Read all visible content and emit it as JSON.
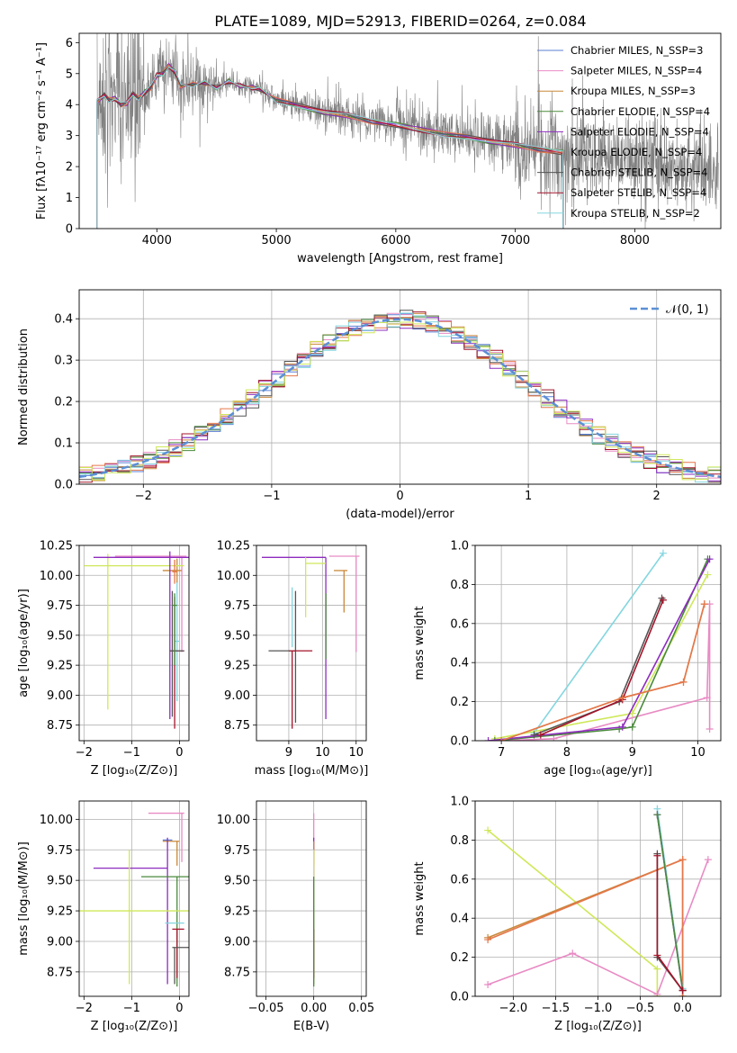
{
  "figure_title": "PLATE=1089, MJD=52913, FIBERID=0264, z=0.084",
  "colors": {
    "Chabrier MILES": "#5b7fd6",
    "Salpeter MILES": "#e88bc4",
    "Kroupa MILES": "#c9883a",
    "Chabrier ELODIE": "#4a8a3c",
    "Salpeter ELODIE": "#8e2cbf",
    "Kroupa ELODIE": "#e5774b",
    "Chabrier STELIB": "#555555",
    "Salpeter STELIB": "#a3142a",
    "Kroupa STELIB": "#83d6df",
    "extra": "#cfe85a",
    "data": "#808080",
    "gauss": "#5b8fd6"
  },
  "chart_data": [
    {
      "id": "spectrum",
      "type": "line",
      "title": "PLATE=1089, MJD=52913, FIBERID=0264, z=0.084",
      "xlabel": "wavelength [Angstrom, rest frame]",
      "ylabel": "Flux [fλ10⁻¹⁷ erg cm⁻² s⁻¹ A⁻¹]",
      "xlim": [
        3350,
        8720
      ],
      "ylim": [
        0,
        6.3
      ],
      "xticks": [
        4000,
        5000,
        6000,
        7000,
        8000
      ],
      "yticks": [
        0,
        1,
        2,
        3,
        4,
        5,
        6
      ],
      "legend_position": "top-right",
      "legend": [
        "Chabrier MILES, N_SSP=3",
        "Salpeter MILES, N_SSP=4",
        "Kroupa MILES, N_SSP=3",
        "Chabrier ELODIE, N_SSP=4",
        "Salpeter ELODIE, N_SSP=4",
        "Kroupa ELODIE, N_SSP=4",
        "Chabrier STELIB, N_SSP=4",
        "Salpeter STELIB, N_SSP=4",
        "Kroupa STELIB, N_SSP=2"
      ],
      "legend_keys": [
        "Chabrier MILES",
        "Salpeter MILES",
        "Kroupa MILES",
        "Chabrier ELODIE",
        "Salpeter ELODIE",
        "Kroupa ELODIE",
        "Chabrier STELIB",
        "Salpeter STELIB",
        "Kroupa STELIB"
      ],
      "model_continuum": {
        "x": [
          3500,
          3560,
          3600,
          3650,
          3700,
          3750,
          3800,
          3850,
          3900,
          3950,
          4000,
          4050,
          4100,
          4150,
          4200,
          4300,
          4400,
          4500,
          4600,
          4700,
          4800,
          4860,
          5000,
          5200,
          5400,
          5600,
          5800,
          6000,
          6200,
          6400,
          6600,
          6800,
          7000,
          7200,
          7400
        ],
        "y": [
          4.1,
          4.3,
          4.15,
          4.2,
          4.0,
          4.05,
          4.35,
          4.2,
          4.4,
          4.55,
          4.95,
          5.0,
          5.25,
          5.05,
          4.6,
          4.65,
          4.7,
          4.55,
          4.75,
          4.6,
          4.55,
          4.5,
          4.15,
          3.95,
          3.75,
          3.65,
          3.45,
          3.35,
          3.2,
          3.05,
          2.95,
          2.8,
          2.7,
          2.55,
          2.45
        ]
      }
    },
    {
      "id": "residuals",
      "type": "line",
      "xlabel": "(data-model)/error",
      "ylabel": "Normed distribution",
      "xlim": [
        -2.5,
        2.5
      ],
      "ylim": [
        0,
        0.47
      ],
      "xticks": [
        -2,
        -1,
        0,
        1,
        2
      ],
      "yticks": [
        0.0,
        0.1,
        0.2,
        0.3,
        0.4
      ],
      "legend": [
        "𝒩(0, 1)"
      ],
      "legend_position": "top-right",
      "gaussian": {
        "mu": 0,
        "sigma": 1
      },
      "hist_bins": {
        "start": -2.5,
        "width": 0.1,
        "count": 50
      }
    },
    {
      "id": "age_vs_Z",
      "type": "scatter",
      "xlabel": "Z [log₁₀(Z/Z⊙)]",
      "ylabel": "age  [log₁₀(age/yr)]",
      "xlim": [
        -2.1,
        0.2
      ],
      "ylim": [
        8.62,
        10.25
      ],
      "xticks": [
        -2,
        -1,
        0
      ],
      "yticks": [
        8.75,
        9.0,
        9.25,
        9.5,
        9.75,
        10.0,
        10.25
      ],
      "points": [
        {
          "model": "Kroupa STELIB",
          "x": -0.05,
          "y": 9.45,
          "xerr": [
            0.05,
            0.05
          ],
          "yerr": [
            0.5,
            0.5
          ]
        },
        {
          "model": "Salpeter MILES",
          "x": 0.05,
          "y": 10.16,
          "xerr": [
            1.4,
            0.1
          ],
          "yerr": [
            0.8,
            0.0
          ]
        },
        {
          "model": "Kroupa MILES",
          "x": -0.05,
          "y": 10.04,
          "xerr": [
            0.3,
            0.1
          ],
          "yerr": [
            0.1,
            0.1
          ]
        },
        {
          "model": "extra",
          "x": -1.5,
          "y": 10.08,
          "xerr": [
            0.5,
            1.6
          ],
          "yerr": [
            1.2,
            0.1
          ]
        },
        {
          "model": "Salpeter ELODIE",
          "x": -0.2,
          "y": 10.15,
          "xerr": [
            1.6,
            0.4
          ],
          "yerr": [
            1.35,
            0.05
          ]
        },
        {
          "model": "Salpeter STELIB",
          "x": -0.1,
          "y": 9.37,
          "xerr": [
            0.1,
            0.2
          ],
          "yerr": [
            0.65,
            0.45
          ]
        },
        {
          "model": "Chabrier STELIB",
          "x": -0.15,
          "y": 9.37,
          "xerr": [
            0.05,
            0.25
          ],
          "yerr": [
            0.55,
            0.5
          ]
        },
        {
          "model": "Chabrier ELODIE",
          "x": -0.1,
          "y": 9.75,
          "xerr": [
            0.05,
            0.05
          ],
          "yerr": [
            0.5,
            0.1
          ]
        },
        {
          "model": "Kroupa ELODIE",
          "x": -0.1,
          "y": 10.03,
          "xerr": [
            0.05,
            0.05
          ],
          "yerr": [
            0.1,
            0.1
          ]
        }
      ]
    },
    {
      "id": "age_vs_mass",
      "type": "scatter",
      "xlabel": "mass [log₁₀(M/M⊙)]",
      "ylabel": "",
      "xlim": [
        8.52,
        10.15
      ],
      "ylim": [
        8.62,
        10.25
      ],
      "xticks": [
        9,
        9.5,
        10
      ],
      "yticks": [
        8.75,
        9.0,
        9.25,
        9.5,
        9.75,
        10.0,
        10.25
      ],
      "points": [
        {
          "model": "Chabrier STELIB",
          "x": 9.1,
          "y": 9.37,
          "xerr": [
            0.4,
            0.0
          ],
          "yerr": [
            0.6,
            0.5
          ]
        },
        {
          "model": "Salpeter STELIB",
          "x": 9.05,
          "y": 9.37,
          "xerr": [
            0.05,
            0.3
          ],
          "yerr": [
            0.65,
            0.0
          ]
        },
        {
          "model": "Salpeter ELODIE",
          "x": 9.55,
          "y": 10.15,
          "xerr": [
            0.95,
            0.0
          ],
          "yerr": [
            1.35,
            0.0
          ]
        },
        {
          "model": "Kroupa STELIB",
          "x": 9.05,
          "y": 9.9,
          "xerr": [
            0.0,
            0.0
          ],
          "yerr": [
            0.5,
            0.0
          ]
        },
        {
          "model": "extra",
          "x": 9.25,
          "y": 10.1,
          "xerr": [
            0.0,
            0.3
          ],
          "yerr": [
            0.45,
            0.05
          ]
        },
        {
          "model": "Salpeter MILES",
          "x": 10.0,
          "y": 10.16,
          "xerr": [
            0.4,
            0.05
          ],
          "yerr": [
            0.8,
            0.0
          ]
        },
        {
          "model": "Kroupa MILES",
          "x": 9.82,
          "y": 10.04,
          "xerr": [
            0.15,
            0.05
          ],
          "yerr": [
            0.35,
            0.0
          ]
        },
        {
          "model": "Chabrier ELODIE",
          "x": 9.55,
          "y": 9.75,
          "xerr": [
            0.0,
            0.0
          ],
          "yerr": [
            0.45,
            0.1
          ]
        }
      ]
    },
    {
      "id": "massweight_vs_age",
      "type": "line",
      "xlabel": "age  [log₁₀(age/yr)]",
      "ylabel": "mass weight",
      "xlim": [
        6.6,
        10.35
      ],
      "ylim": [
        0,
        1.0
      ],
      "xticks": [
        7,
        8,
        9,
        10
      ],
      "yticks": [
        0.0,
        0.2,
        0.4,
        0.6,
        0.8,
        1.0
      ],
      "series": [
        {
          "model": "Kroupa STELIB",
          "x": [
            7.5,
            9.47
          ],
          "y": [
            0.04,
            0.96
          ]
        },
        {
          "model": "Salpeter MILES",
          "x": [
            7.0,
            7.8,
            10.14,
            10.18,
            10.18
          ],
          "y": [
            0.0,
            0.01,
            0.22,
            0.7,
            0.06
          ]
        },
        {
          "model": "Kroupa MILES",
          "x": [
            7.0,
            8.85,
            9.78,
            10.1
          ],
          "y": [
            0.0,
            0.22,
            0.3,
            0.7
          ]
        },
        {
          "model": "extra",
          "x": [
            6.9,
            9.0,
            10.15
          ],
          "y": [
            0.01,
            0.14,
            0.85
          ]
        },
        {
          "model": "Chabrier ELODIE",
          "x": [
            6.9,
            8.8,
            9.0,
            10.15
          ],
          "y": [
            0.0,
            0.06,
            0.07,
            0.93
          ]
        },
        {
          "model": "Salpeter ELODIE",
          "x": [
            6.8,
            8.85,
            10.18
          ],
          "y": [
            0.0,
            0.07,
            0.93
          ]
        },
        {
          "model": "Chabrier STELIB",
          "x": [
            7.5,
            8.8,
            9.45
          ],
          "y": [
            0.03,
            0.2,
            0.73
          ]
        },
        {
          "model": "Salpeter STELIB",
          "x": [
            7.6,
            8.85,
            9.47
          ],
          "y": [
            0.03,
            0.21,
            0.72
          ]
        },
        {
          "model": "Kroupa ELODIE",
          "x": [
            7.0,
            8.85,
            9.78,
            10.1
          ],
          "y": [
            0.0,
            0.22,
            0.3,
            0.7
          ]
        }
      ]
    },
    {
      "id": "mass_vs_Z",
      "type": "scatter",
      "xlabel": "Z [log₁₀(Z/Z⊙)]",
      "ylabel": "mass [log₁₀(M/M⊙)]",
      "xlim": [
        -2.1,
        0.2
      ],
      "ylim": [
        8.55,
        10.15
      ],
      "xticks": [
        -2,
        -1,
        0
      ],
      "yticks": [
        8.75,
        9.0,
        9.25,
        9.5,
        9.75,
        10.0
      ],
      "points": [
        {
          "model": "Salpeter MILES",
          "x": 0.05,
          "y": 10.05,
          "xerr": [
            0.7,
            0.05
          ],
          "yerr": [
            0.4,
            0.0
          ]
        },
        {
          "model": "Kroupa MILES",
          "x": -0.05,
          "y": 9.82,
          "xerr": [
            0.3,
            0.05
          ],
          "yerr": [
            0.2,
            0.0
          ]
        },
        {
          "model": "Chabrier MILES",
          "x": -0.2,
          "y": 9.83,
          "xerr": [
            0.15,
            0.05
          ],
          "yerr": [
            0.0,
            0.0
          ]
        },
        {
          "model": "Salpeter ELODIE",
          "x": -0.25,
          "y": 9.6,
          "xerr": [
            1.55,
            0.0
          ],
          "yerr": [
            0.95,
            0.25
          ]
        },
        {
          "model": "Chabrier ELODIE",
          "x": -0.05,
          "y": 9.53,
          "xerr": [
            0.75,
            0.3
          ],
          "yerr": [
            0.9,
            0.0
          ]
        },
        {
          "model": "extra",
          "x": -1.05,
          "y": 9.25,
          "xerr": [
            1.05,
            1.25
          ],
          "yerr": [
            0.6,
            0.5
          ]
        },
        {
          "model": "Kroupa STELIB",
          "x": 0.0,
          "y": 9.15,
          "xerr": [
            0.3,
            0.1
          ],
          "yerr": [
            0.0,
            0.0
          ]
        },
        {
          "model": "Salpeter STELIB",
          "x": -0.05,
          "y": 9.1,
          "xerr": [
            0.1,
            0.15
          ],
          "yerr": [
            0.4,
            0.0
          ]
        },
        {
          "model": "Chabrier STELIB",
          "x": -0.1,
          "y": 8.95,
          "xerr": [
            0.05,
            0.3
          ],
          "yerr": [
            0.3,
            0.0
          ]
        }
      ]
    },
    {
      "id": "mass_vs_EBV",
      "type": "scatter",
      "xlabel": "E(B-V)",
      "ylabel": "",
      "xlim": [
        -0.06,
        0.055
      ],
      "ylim": [
        8.55,
        10.15
      ],
      "xticks": [
        -0.05,
        0.0,
        0.05
      ],
      "yticks": [
        8.75,
        9.0,
        9.25,
        9.5,
        9.75,
        10.0
      ],
      "points": [
        {
          "model": "Salpeter MILES",
          "x": 0.0,
          "y": 10.05,
          "xerr": [
            0,
            0
          ],
          "yerr": [
            0.4,
            0.0
          ]
        },
        {
          "model": "Salpeter ELODIE",
          "x": 0.0,
          "y": 9.6,
          "xerr": [
            0,
            0
          ],
          "yerr": [
            0.95,
            0.25
          ]
        },
        {
          "model": "Kroupa MILES",
          "x": 0.0,
          "y": 9.82,
          "xerr": [
            0,
            0
          ],
          "yerr": [
            0.2,
            0.0
          ]
        },
        {
          "model": "extra",
          "x": 0.0,
          "y": 9.25,
          "xerr": [
            0,
            0
          ],
          "yerr": [
            0.6,
            0.5
          ]
        },
        {
          "model": "Salpeter STELIB",
          "x": 0.0,
          "y": 9.1,
          "xerr": [
            0,
            0
          ],
          "yerr": [
            0.4,
            0.0
          ]
        },
        {
          "model": "Chabrier ELODIE",
          "x": 0.0,
          "y": 9.53,
          "xerr": [
            0,
            0
          ],
          "yerr": [
            0.9,
            0.0
          ]
        }
      ]
    },
    {
      "id": "massweight_vs_Z",
      "type": "line",
      "xlabel": "Z [log₁₀(Z/Z⊙)]",
      "ylabel": "mass weight",
      "xlim": [
        -2.45,
        0.45
      ],
      "ylim": [
        0,
        1.0
      ],
      "xticks": [
        -2.0,
        -1.5,
        -1.0,
        -0.5,
        0.0
      ],
      "yticks": [
        0.0,
        0.2,
        0.4,
        0.6,
        0.8,
        1.0
      ],
      "series": [
        {
          "model": "extra",
          "x": [
            -2.3,
            -0.3,
            -0.3
          ],
          "y": [
            0.85,
            0.14,
            0.0
          ]
        },
        {
          "model": "Salpeter MILES",
          "x": [
            -2.3,
            -1.3,
            -0.3,
            0.3
          ],
          "y": [
            0.06,
            0.22,
            0.01,
            0.7
          ]
        },
        {
          "model": "Kroupa MILES",
          "x": [
            -2.3,
            0.0,
            0.0
          ],
          "y": [
            0.3,
            0.7,
            0.0
          ]
        },
        {
          "model": "Kroupa ELODIE",
          "x": [
            -2.3,
            0.0,
            0.0
          ],
          "y": [
            0.29,
            0.7,
            0.0
          ]
        },
        {
          "model": "Kroupa STELIB",
          "x": [
            -0.3,
            0.0
          ],
          "y": [
            0.96,
            0.04
          ]
        },
        {
          "model": "Salpeter ELODIE",
          "x": [
            -0.3,
            0.0
          ],
          "y": [
            0.93,
            0.03
          ]
        },
        {
          "model": "Chabrier ELODIE",
          "x": [
            -0.3,
            0.0
          ],
          "y": [
            0.93,
            0.03
          ]
        },
        {
          "model": "Chabrier STELIB",
          "x": [
            -0.3,
            -0.3,
            0.0
          ],
          "y": [
            0.73,
            0.2,
            0.03
          ]
        },
        {
          "model": "Salpeter STELIB",
          "x": [
            -0.3,
            -0.3,
            0.0
          ],
          "y": [
            0.72,
            0.21,
            0.03
          ]
        }
      ]
    }
  ]
}
